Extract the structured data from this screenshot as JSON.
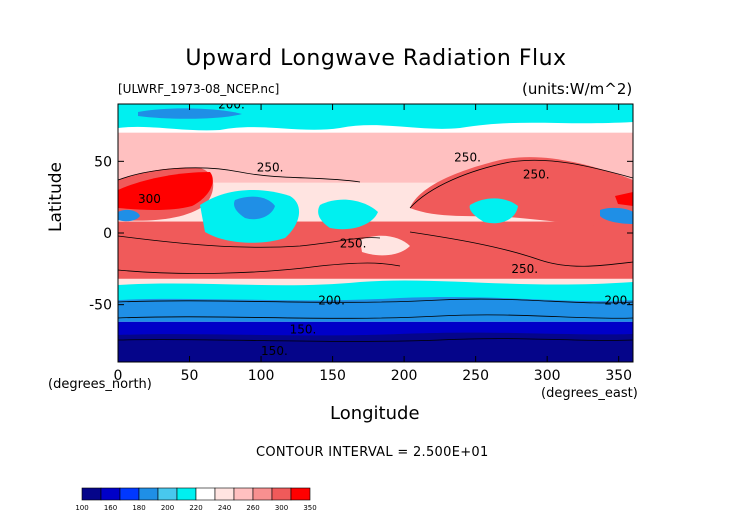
{
  "chart_data": {
    "type": "heatmap",
    "title": "Upward Longwave Radiation Flux",
    "file_label": "[ULWRF_1973-08_NCEP.nc]",
    "units_label": "(units:W/m^2)",
    "xlabel": "Longitude",
    "ylabel": "Latitude",
    "x_units": "(degrees_east)",
    "y_units": "(degrees_north)",
    "xlim": [
      0,
      360
    ],
    "ylim": [
      -90,
      90
    ],
    "x_ticks": [
      "0",
      "50",
      "100",
      "150",
      "200",
      "250",
      "300",
      "350"
    ],
    "x_tick_values": [
      0,
      50,
      100,
      150,
      200,
      250,
      300,
      350
    ],
    "y_ticks": [
      "50",
      "0",
      "-50"
    ],
    "y_tick_values": [
      50,
      0,
      -50
    ],
    "contour_interval_text": "CONTOUR INTERVAL = 2.500E+01",
    "contour_labels": [
      {
        "text": "200.",
        "lon": 70,
        "lat": 87
      },
      {
        "text": "250.",
        "lon": 97,
        "lat": 43
      },
      {
        "text": "300",
        "lon": 14,
        "lat": 21
      },
      {
        "text": "250.",
        "lon": 155,
        "lat": -10
      },
      {
        "text": "250.",
        "lon": 235,
        "lat": 50
      },
      {
        "text": "250.",
        "lon": 283,
        "lat": 38
      },
      {
        "text": "250.",
        "lon": 275,
        "lat": -28
      },
      {
        "text": "200.",
        "lon": 140,
        "lat": -50
      },
      {
        "text": "200.",
        "lon": 340,
        "lat": -50
      },
      {
        "text": "150.",
        "lon": 120,
        "lat": -70
      },
      {
        "text": "150.",
        "lon": 100,
        "lat": -85
      }
    ],
    "legend": {
      "boundaries": [
        "100",
        "160",
        "180",
        "200",
        "220",
        "240",
        "260",
        "300",
        "350"
      ],
      "colors": [
        "#05058a",
        "#0000c8",
        "#0038ff",
        "#1f8fe6",
        "#48c8ee",
        "#00f0f0",
        "#ffffff",
        "#ffe4e1",
        "#ffc0c0",
        "#f89090",
        "#f05a5a",
        "#ff0000"
      ]
    },
    "bands": [
      {
        "lat_top": 90,
        "lat_bot": 70,
        "color": "#ffffff"
      },
      {
        "lat_top": 70,
        "lat_bot": 35,
        "color": "#ffc0c0"
      },
      {
        "lat_top": 35,
        "lat_bot": 8,
        "color": "#ffe4e1"
      },
      {
        "lat_top": 8,
        "lat_bot": -32,
        "color": "#f05a5a"
      },
      {
        "lat_top": -32,
        "lat_bot": -45,
        "color": "#ffe4e1"
      },
      {
        "lat_top": -45,
        "lat_bot": -53,
        "color": "#00f0f0"
      },
      {
        "lat_top": -53,
        "lat_bot": -62,
        "color": "#1f8fe6"
      },
      {
        "lat_top": -62,
        "lat_bot": -75,
        "color": "#0000c8"
      },
      {
        "lat_top": -75,
        "lat_bot": -90,
        "color": "#05058a"
      }
    ]
  }
}
